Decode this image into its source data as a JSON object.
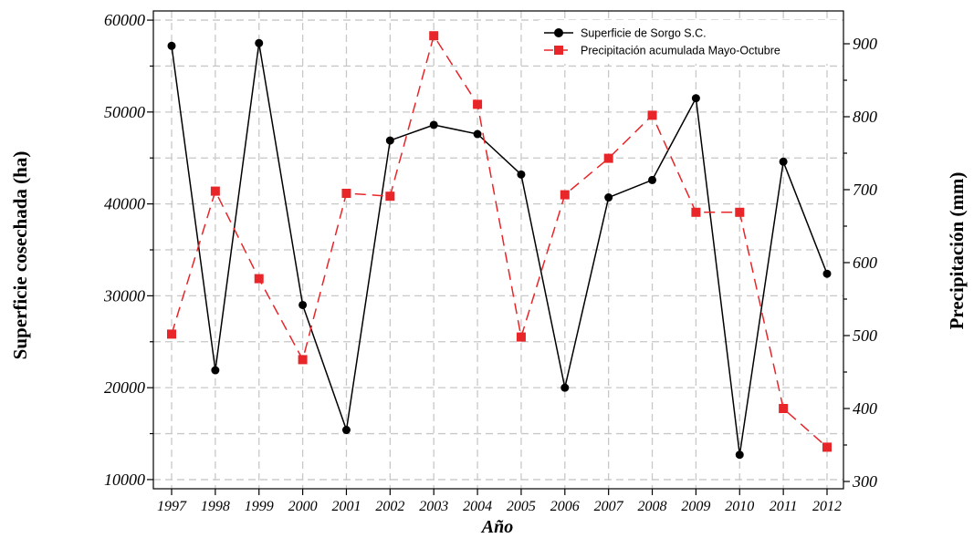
{
  "chart_data": {
    "type": "line",
    "x": [
      "1997",
      "1998",
      "1999",
      "2000",
      "2001",
      "2002",
      "2003",
      "2004",
      "2005",
      "2006",
      "2007",
      "2008",
      "2009",
      "2010",
      "2011",
      "2012"
    ],
    "xlabel": "Año",
    "ylabel_left": "Superficie  cosechada  (ha)",
    "ylabel_right": "Precipitación (mm)",
    "ylim_left": [
      9000,
      61000
    ],
    "ylim_right": [
      290,
      945
    ],
    "yticks_left": [
      10000,
      20000,
      30000,
      40000,
      50000,
      60000
    ],
    "yticks_right": [
      300,
      400,
      500,
      600,
      700,
      800,
      900
    ],
    "grid": true,
    "legend_position": "top-right",
    "series": [
      {
        "name": "Superficie de Sorgo S.C.",
        "axis": "left",
        "color": "#000000",
        "line_style": "solid",
        "marker": "circle",
        "values": [
          57200,
          21900,
          57500,
          29000,
          15400,
          46900,
          48600,
          47600,
          43200,
          20000,
          40700,
          42600,
          51500,
          12700,
          44600,
          32400
        ]
      },
      {
        "name": "Precipitación acumulada Mayo-Octubre",
        "axis": "right",
        "color": "#e8262a",
        "line_style": "dashed",
        "marker": "square",
        "values": [
          502,
          698,
          578,
          467,
          695,
          691,
          911,
          817,
          498,
          693,
          743,
          802,
          669,
          669,
          400,
          347
        ]
      }
    ]
  }
}
